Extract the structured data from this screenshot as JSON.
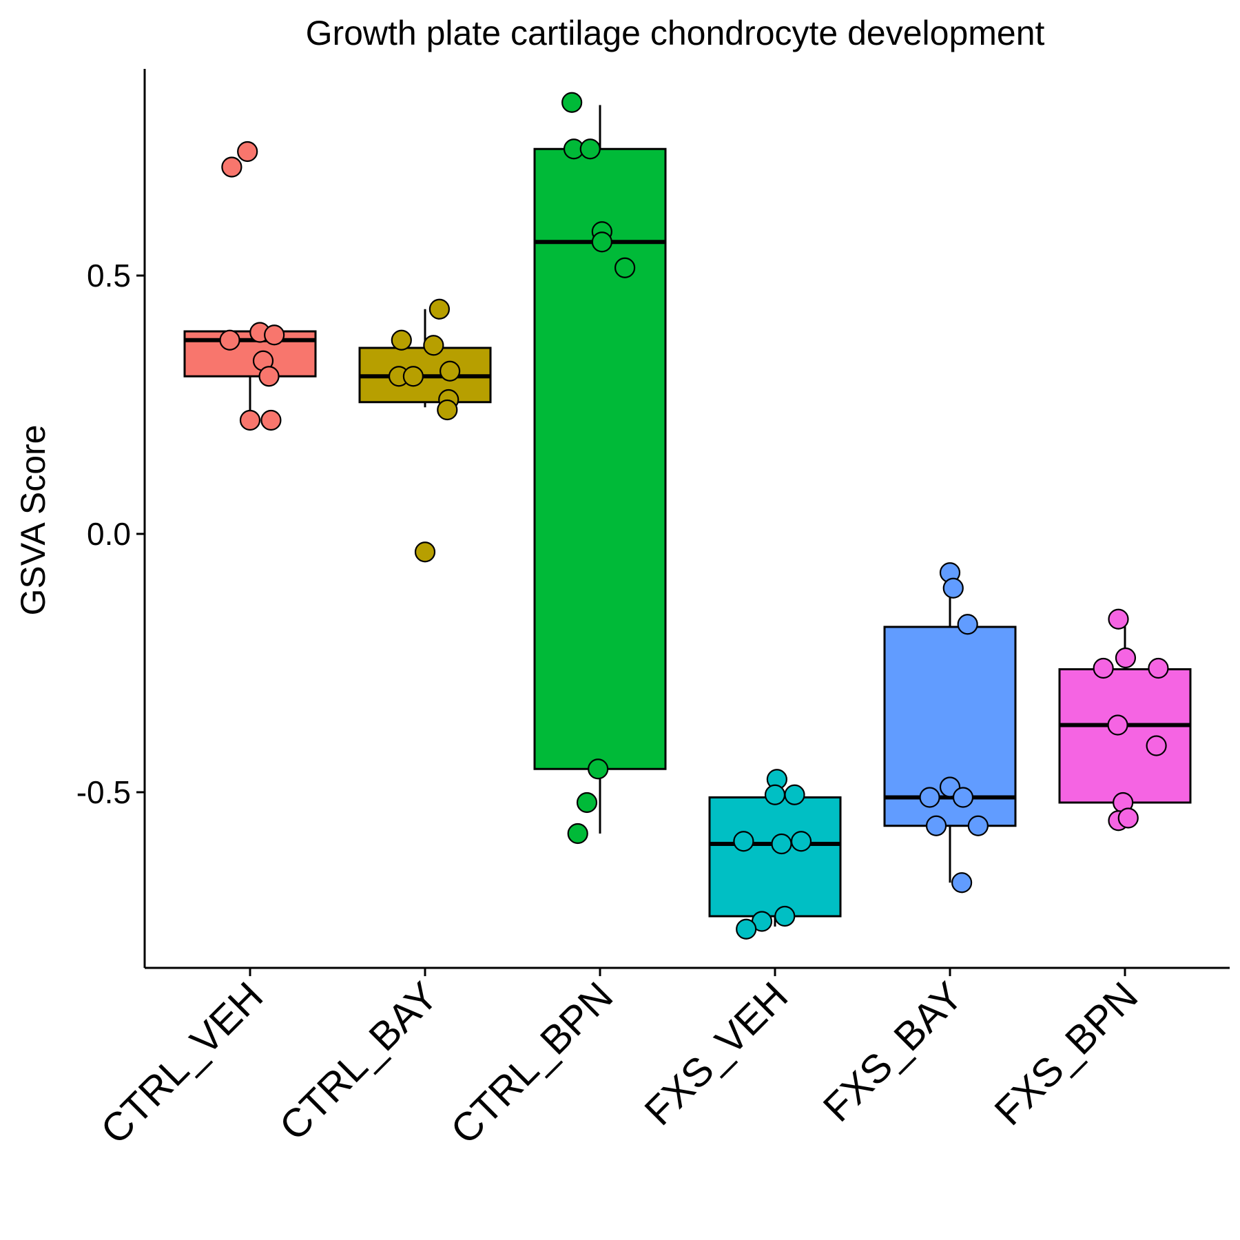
{
  "chart_data": {
    "type": "box",
    "title": "Growth plate cartilage chondrocyte development",
    "xlabel": "",
    "ylabel": "GSVA Score",
    "ylim": [
      -0.84,
      0.9
    ],
    "yticks": [
      {
        "value": 0.5,
        "label": "0.5"
      },
      {
        "value": 0.0,
        "label": "0.0"
      },
      {
        "value": -0.5,
        "label": "-0.5"
      }
    ],
    "grid": false,
    "legend": "none",
    "categories": [
      "CTRL_VEH",
      "CTRL_BAY",
      "CTRL_BPN",
      "FXS_VEH",
      "FXS_BAY",
      "FXS_BPN"
    ],
    "series": [
      {
        "category": "CTRL_VEH",
        "color": "#F8766D",
        "whisker_low": 0.22,
        "q1": 0.305,
        "median": 0.375,
        "q3": 0.392,
        "whisker_high": 0.392,
        "points": [
          {
            "value": 0.71,
            "jitter": -0.28
          },
          {
            "value": 0.74,
            "jitter": -0.04
          },
          {
            "value": 0.375,
            "jitter": -0.31
          },
          {
            "value": 0.39,
            "jitter": 0.15
          },
          {
            "value": 0.385,
            "jitter": 0.37
          },
          {
            "value": 0.335,
            "jitter": 0.2
          },
          {
            "value": 0.305,
            "jitter": 0.29
          },
          {
            "value": 0.22,
            "jitter": 0.0
          },
          {
            "value": 0.22,
            "jitter": 0.32
          }
        ]
      },
      {
        "category": "CTRL_BAY",
        "color": "#B79F00",
        "whisker_low": 0.245,
        "q1": 0.255,
        "median": 0.305,
        "q3": 0.36,
        "whisker_high": 0.435,
        "points": [
          {
            "value": 0.435,
            "jitter": 0.22
          },
          {
            "value": 0.375,
            "jitter": -0.36
          },
          {
            "value": 0.365,
            "jitter": 0.13
          },
          {
            "value": 0.315,
            "jitter": 0.38
          },
          {
            "value": 0.305,
            "jitter": -0.4
          },
          {
            "value": 0.305,
            "jitter": -0.18
          },
          {
            "value": 0.26,
            "jitter": 0.36
          },
          {
            "value": 0.24,
            "jitter": 0.34
          },
          {
            "value": -0.035,
            "jitter": 0.0
          }
        ]
      },
      {
        "category": "CTRL_BPN",
        "color": "#00BA38",
        "whisker_low": -0.58,
        "q1": -0.455,
        "median": 0.565,
        "q3": 0.745,
        "whisker_high": 0.83,
        "points": [
          {
            "value": 0.835,
            "jitter": -0.43
          },
          {
            "value": 0.745,
            "jitter": -0.4
          },
          {
            "value": 0.745,
            "jitter": -0.15
          },
          {
            "value": 0.585,
            "jitter": 0.03
          },
          {
            "value": 0.565,
            "jitter": 0.03
          },
          {
            "value": 0.515,
            "jitter": 0.38
          },
          {
            "value": -0.455,
            "jitter": -0.03
          },
          {
            "value": -0.52,
            "jitter": -0.2
          },
          {
            "value": -0.58,
            "jitter": -0.34
          }
        ]
      },
      {
        "category": "FXS_VEH",
        "color": "#00BFC4",
        "whisker_low": -0.76,
        "q1": -0.74,
        "median": -0.6,
        "q3": -0.51,
        "whisker_high": -0.47,
        "points": [
          {
            "value": -0.475,
            "jitter": 0.03
          },
          {
            "value": -0.505,
            "jitter": 0.0
          },
          {
            "value": -0.505,
            "jitter": 0.3
          },
          {
            "value": -0.595,
            "jitter": -0.48
          },
          {
            "value": -0.6,
            "jitter": 0.1
          },
          {
            "value": -0.595,
            "jitter": 0.4
          },
          {
            "value": -0.75,
            "jitter": -0.2
          },
          {
            "value": -0.74,
            "jitter": 0.15
          },
          {
            "value": -0.765,
            "jitter": -0.44
          }
        ]
      },
      {
        "category": "FXS_BAY",
        "color": "#619CFF",
        "whisker_low": -0.675,
        "q1": -0.565,
        "median": -0.51,
        "q3": -0.18,
        "whisker_high": -0.075,
        "points": [
          {
            "value": -0.075,
            "jitter": 0.0
          },
          {
            "value": -0.105,
            "jitter": 0.05
          },
          {
            "value": -0.175,
            "jitter": 0.27
          },
          {
            "value": -0.49,
            "jitter": 0.0
          },
          {
            "value": -0.51,
            "jitter": -0.31
          },
          {
            "value": -0.51,
            "jitter": 0.2
          },
          {
            "value": -0.565,
            "jitter": -0.21
          },
          {
            "value": -0.565,
            "jitter": 0.43
          },
          {
            "value": -0.675,
            "jitter": 0.18
          }
        ]
      },
      {
        "category": "FXS_BPN",
        "color": "#F564E3",
        "whisker_low": -0.52,
        "q1": -0.52,
        "median": -0.37,
        "q3": -0.262,
        "whisker_high": -0.165,
        "points": [
          {
            "value": -0.165,
            "jitter": -0.1
          },
          {
            "value": -0.24,
            "jitter": 0.01
          },
          {
            "value": -0.26,
            "jitter": -0.33
          },
          {
            "value": -0.26,
            "jitter": 0.51
          },
          {
            "value": -0.37,
            "jitter": -0.11
          },
          {
            "value": -0.41,
            "jitter": 0.48
          },
          {
            "value": -0.52,
            "jitter": -0.03
          },
          {
            "value": -0.555,
            "jitter": -0.1
          },
          {
            "value": -0.55,
            "jitter": 0.05
          }
        ]
      }
    ]
  }
}
